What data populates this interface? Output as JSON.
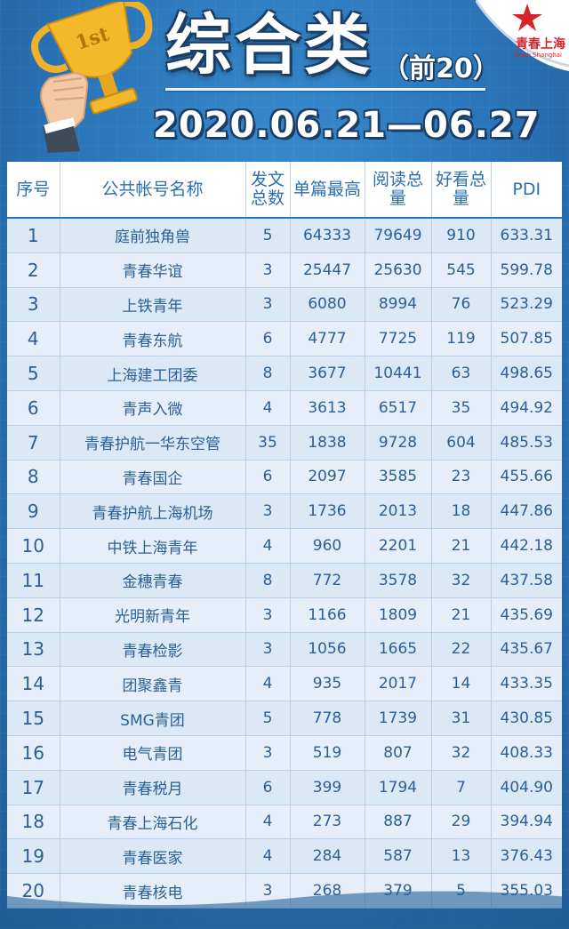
{
  "header": {
    "title": "综合类",
    "subtitle": "（前20）",
    "date_range": "2020.06.21—06.27",
    "trophy_text": "1st",
    "logo_text": "青春上海",
    "logo_sub": "Youth Shanghai"
  },
  "table": {
    "columns": [
      {
        "label": "序号"
      },
      {
        "label": "公共帐号名称"
      },
      {
        "label": "发文总数"
      },
      {
        "label": "单篇最高"
      },
      {
        "label": "阅读总量"
      },
      {
        "label": "好看总量"
      },
      {
        "label": "PDI"
      }
    ],
    "rows": [
      [
        "1",
        "庭前独角兽",
        "5",
        "64333",
        "79649",
        "910",
        "633.31"
      ],
      [
        "2",
        "青春华谊",
        "3",
        "25447",
        "25630",
        "545",
        "599.78"
      ],
      [
        "3",
        "上铁青年",
        "3",
        "6080",
        "8994",
        "76",
        "523.29"
      ],
      [
        "4",
        "青春东航",
        "6",
        "4777",
        "7725",
        "119",
        "507.85"
      ],
      [
        "5",
        "上海建工团委",
        "8",
        "3677",
        "10441",
        "63",
        "498.65"
      ],
      [
        "6",
        "青声入微",
        "4",
        "3613",
        "6517",
        "35",
        "494.92"
      ],
      [
        "7",
        "青春护航一华东空管",
        "35",
        "1838",
        "9728",
        "604",
        "485.53"
      ],
      [
        "8",
        "青春国企",
        "6",
        "2097",
        "3585",
        "23",
        "455.66"
      ],
      [
        "9",
        "青春护航上海机场",
        "3",
        "1736",
        "2013",
        "18",
        "447.86"
      ],
      [
        "10",
        "中铁上海青年",
        "4",
        "960",
        "2201",
        "21",
        "442.18"
      ],
      [
        "11",
        "金穗青春",
        "8",
        "772",
        "3578",
        "32",
        "437.58"
      ],
      [
        "12",
        "光明新青年",
        "3",
        "1166",
        "1809",
        "21",
        "435.69"
      ],
      [
        "13",
        "青春检影",
        "3",
        "1056",
        "1665",
        "22",
        "435.67"
      ],
      [
        "14",
        "团聚鑫青",
        "4",
        "935",
        "2017",
        "14",
        "433.35"
      ],
      [
        "15",
        "SMG青团",
        "5",
        "778",
        "1739",
        "31",
        "430.85"
      ],
      [
        "16",
        "电气青团",
        "3",
        "519",
        "807",
        "32",
        "408.33"
      ],
      [
        "17",
        "青春税月",
        "6",
        "399",
        "1794",
        "7",
        "404.90"
      ],
      [
        "18",
        "青春上海石化",
        "4",
        "273",
        "887",
        "29",
        "394.94"
      ],
      [
        "19",
        "青春医家",
        "4",
        "284",
        "587",
        "13",
        "376.43"
      ],
      [
        "20",
        "青春核电",
        "3",
        "268",
        "379",
        "5",
        "355.03"
      ]
    ]
  },
  "icons": {
    "trophy": "trophy-icon",
    "star": "star-icon"
  },
  "colors": {
    "background": "#2a74b8",
    "header_text": "#2c6fb0",
    "row_bg": "#dbe8f6",
    "logo_red": "#d8232a"
  }
}
